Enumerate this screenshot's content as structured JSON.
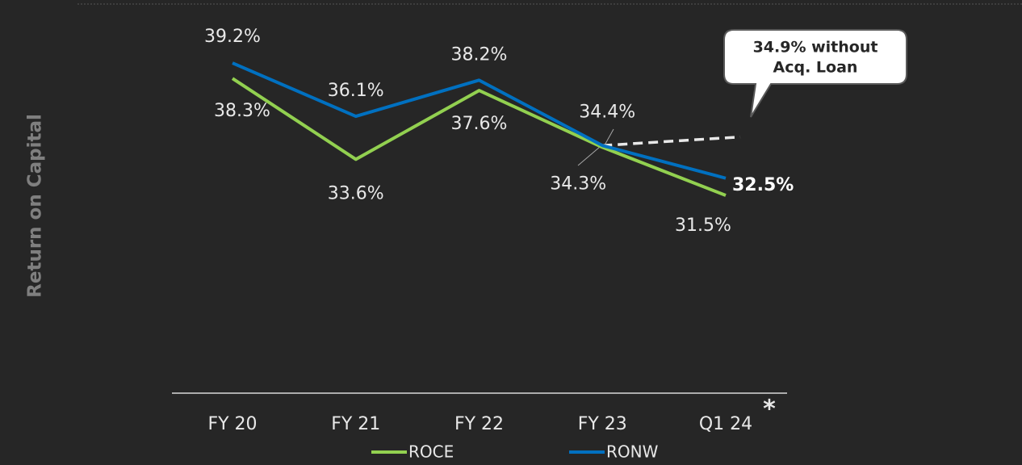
{
  "chart_data": {
    "type": "line",
    "y_axis_label": "Return on Capital",
    "categories": [
      "FY 20",
      "FY 21",
      "FY 22",
      "FY 23",
      "Q1 24"
    ],
    "series": [
      {
        "name": "ROCE",
        "color": "#92d050",
        "values": [
          38.3,
          33.6,
          37.6,
          34.3,
          31.5
        ],
        "value_labels": [
          "38.3%",
          "33.6%",
          "37.6%",
          "34.3%",
          "31.5%"
        ]
      },
      {
        "name": "RONW",
        "color": "#0070c0",
        "values": [
          39.2,
          36.1,
          38.2,
          34.4,
          32.5
        ],
        "value_labels": [
          "39.2%",
          "36.1%",
          "38.2%",
          "34.4%",
          "32.5%"
        ]
      }
    ],
    "annotation": {
      "lines": [
        "34.9% without",
        "Acq. Loan"
      ],
      "value": 34.9
    },
    "footnote_marker": "*",
    "ylim": [
      20,
      40
    ],
    "legend": "bottom"
  }
}
